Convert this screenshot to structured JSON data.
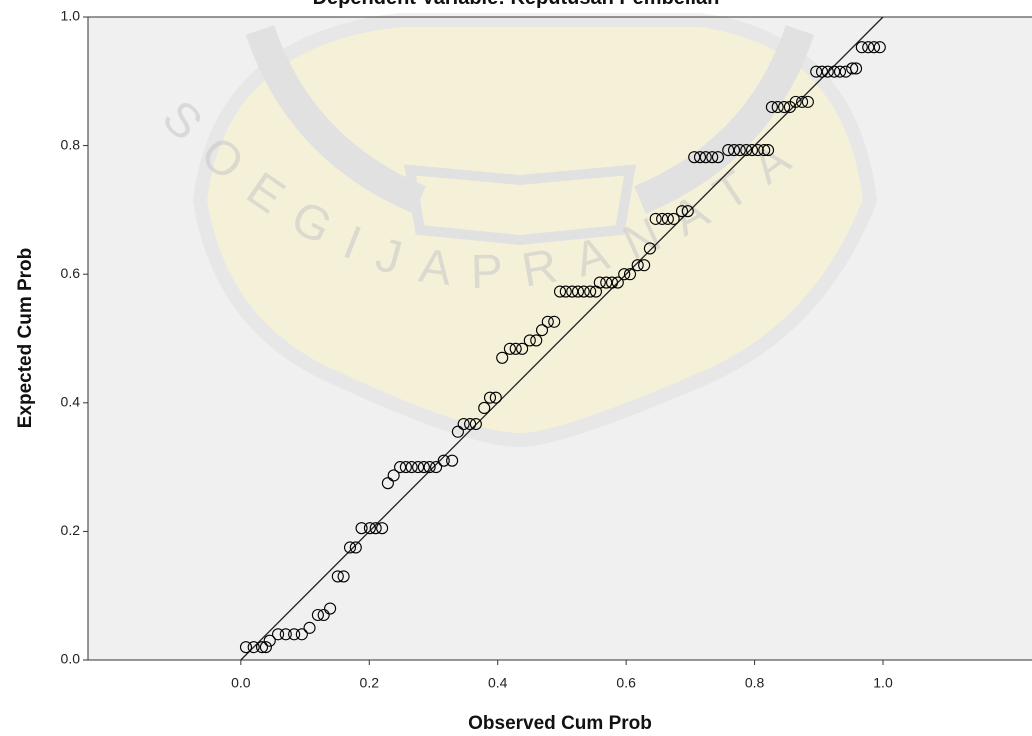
{
  "chart_data": {
    "type": "scatter",
    "title": "Dependent Variable: Keputusan Pembelian",
    "x_label": "Observed Cum Prob",
    "y_label": "Expected Cum Prob",
    "watermark": "SOEGIJAPRANATA",
    "color": "#000000",
    "xlim": [
      -0.238,
      1.232
    ],
    "ylim": [
      0,
      1
    ],
    "xticks": [
      {
        "value": 0,
        "label": "0.0"
      },
      {
        "value": 0.2,
        "label": "0.2"
      },
      {
        "value": 0.4,
        "label": "0.4"
      },
      {
        "value": 0.6,
        "label": "0.6"
      },
      {
        "value": 0.8,
        "label": "0.8"
      },
      {
        "value": 1,
        "label": "1.0"
      }
    ],
    "yticks": [
      {
        "value": 0,
        "label": "0.0"
      },
      {
        "value": 0.2,
        "label": "0.2"
      },
      {
        "value": 0.4,
        "label": "0.4"
      },
      {
        "value": 0.6,
        "label": "0.6"
      },
      {
        "value": 0.8,
        "label": "0.8"
      },
      {
        "value": 1,
        "label": "1.0"
      }
    ],
    "x": [
      0.008,
      0.02,
      0.033,
      0.039,
      0.045,
      0.058,
      0.07,
      0.083,
      0.095,
      0.107,
      0.12,
      0.129,
      0.139,
      0.151,
      0.16,
      0.17,
      0.179,
      0.188,
      0.201,
      0.21,
      0.22,
      0.229,
      0.238,
      0.248,
      0.257,
      0.266,
      0.276,
      0.285,
      0.294,
      0.304,
      0.316,
      0.329,
      0.338,
      0.347,
      0.357,
      0.366,
      0.379,
      0.388,
      0.397,
      0.407,
      0.419,
      0.428,
      0.438,
      0.45,
      0.46,
      0.469,
      0.478,
      0.488,
      0.497,
      0.506,
      0.516,
      0.525,
      0.534,
      0.544,
      0.553,
      0.559,
      0.569,
      0.578,
      0.587,
      0.597,
      0.606,
      0.618,
      0.628,
      0.637,
      0.646,
      0.656,
      0.665,
      0.674,
      0.687,
      0.696,
      0.706,
      0.715,
      0.724,
      0.734,
      0.743,
      0.759,
      0.768,
      0.777,
      0.787,
      0.796,
      0.805,
      0.815,
      0.821,
      0.827,
      0.836,
      0.846,
      0.855,
      0.864,
      0.874,
      0.883,
      0.896,
      0.905,
      0.914,
      0.924,
      0.933,
      0.942,
      0.952,
      0.958,
      0.967,
      0.977,
      0.986,
      0.995
    ],
    "values": [
      0.02,
      0.02,
      0.02,
      0.02,
      0.03,
      0.04,
      0.04,
      0.04,
      0.04,
      0.05,
      0.07,
      0.07,
      0.08,
      0.13,
      0.13,
      0.175,
      0.175,
      0.205,
      0.205,
      0.205,
      0.205,
      0.275,
      0.287,
      0.3,
      0.3,
      0.3,
      0.3,
      0.3,
      0.3,
      0.3,
      0.31,
      0.31,
      0.355,
      0.367,
      0.367,
      0.367,
      0.392,
      0.408,
      0.408,
      0.47,
      0.484,
      0.484,
      0.484,
      0.497,
      0.497,
      0.513,
      0.526,
      0.526,
      0.573,
      0.573,
      0.573,
      0.573,
      0.573,
      0.573,
      0.573,
      0.587,
      0.587,
      0.587,
      0.587,
      0.6,
      0.6,
      0.614,
      0.614,
      0.64,
      0.686,
      0.686,
      0.686,
      0.686,
      0.698,
      0.698,
      0.782,
      0.782,
      0.782,
      0.782,
      0.782,
      0.793,
      0.793,
      0.793,
      0.793,
      0.793,
      0.793,
      0.793,
      0.793,
      0.86,
      0.86,
      0.86,
      0.86,
      0.868,
      0.868,
      0.868,
      0.915,
      0.915,
      0.915,
      0.915,
      0.915,
      0.915,
      0.92,
      0.92,
      0.953,
      0.953,
      0.953,
      0.953
    ]
  }
}
